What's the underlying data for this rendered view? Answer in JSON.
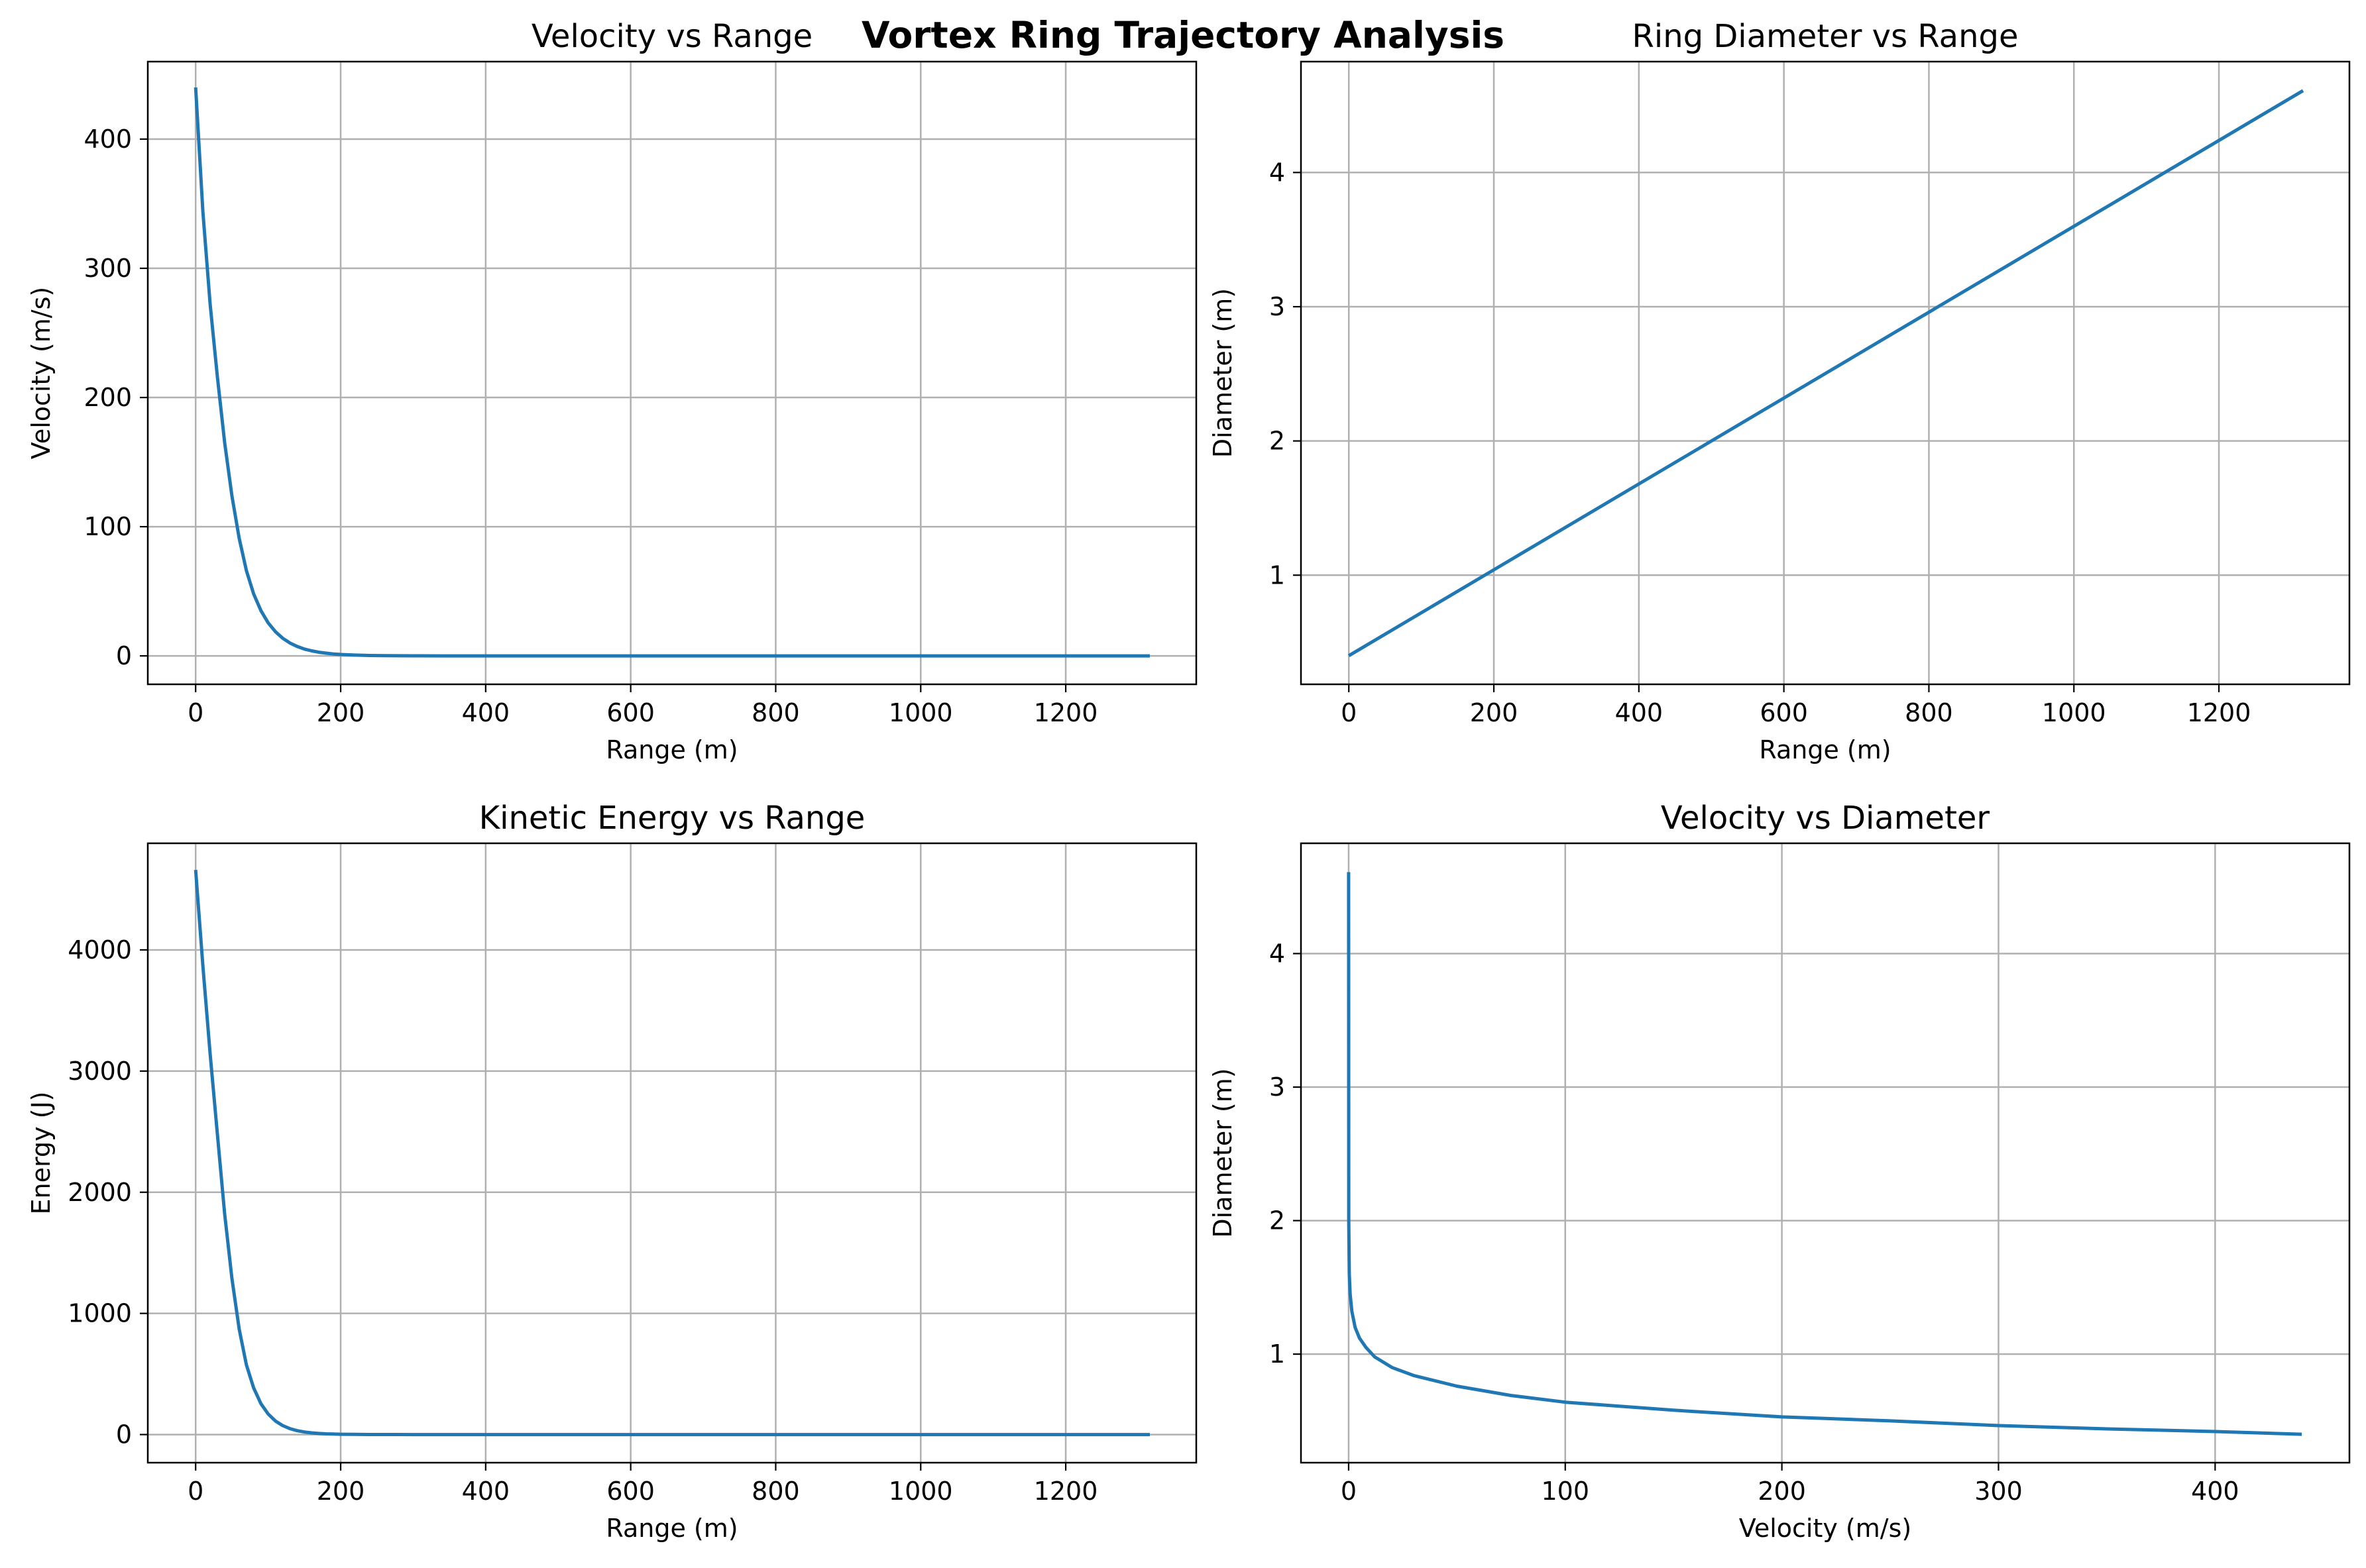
{
  "figure_title": "Vortex Ring Trajectory Analysis",
  "line_color": "#1f77b4",
  "chart_data": [
    {
      "type": "line",
      "title": "Velocity vs Range",
      "xlabel": "Range (m)",
      "ylabel": "Velocity (m/s)",
      "xlim": [
        -66,
        1380
      ],
      "ylim": [
        -22,
        460
      ],
      "xticks": [
        0,
        200,
        400,
        600,
        800,
        1000,
        1200
      ],
      "yticks": [
        0,
        100,
        200,
        300,
        400
      ],
      "xtick_labels": [
        "0",
        "200",
        "400",
        "600",
        "800",
        "1000",
        "1200"
      ],
      "ytick_labels": [
        "0",
        "100",
        "200",
        "300",
        "400"
      ],
      "grid": true,
      "series": [
        {
          "x": [
            0,
            10,
            20,
            30,
            40,
            50,
            60,
            70,
            80,
            90,
            100,
            110,
            120,
            130,
            140,
            150,
            160,
            170,
            180,
            190,
            200,
            220,
            240,
            260,
            280,
            300,
            340,
            380,
            420,
            500,
            600,
            700,
            800,
            900,
            1000,
            1100,
            1200,
            1316
          ],
          "y": [
            440,
            344,
            272,
            216,
            165,
            124,
            91,
            66,
            48,
            35,
            25.6,
            18.7,
            13.7,
            10.0,
            7.3,
            5.3,
            3.9,
            2.8,
            2.1,
            1.5,
            1.1,
            0.6,
            0.3,
            0.17,
            0.09,
            0.05,
            0.02,
            0.01,
            0,
            0,
            0,
            0,
            0,
            0,
            0,
            0,
            0,
            0
          ]
        }
      ]
    },
    {
      "type": "line",
      "title": "Ring Diameter vs Range",
      "xlabel": "Range (m)",
      "ylabel": "Diameter (m)",
      "xlim": [
        -66,
        1380
      ],
      "ylim": [
        0.187,
        4.826
      ],
      "xticks": [
        0,
        200,
        400,
        600,
        800,
        1000,
        1200
      ],
      "yticks": [
        1,
        2,
        3,
        4
      ],
      "xtick_labels": [
        "0",
        "200",
        "400",
        "600",
        "800",
        "1000",
        "1200"
      ],
      "ytick_labels": [
        "1",
        "2",
        "3",
        "4"
      ],
      "grid": true,
      "series": [
        {
          "x": [
            0,
            1316
          ],
          "y": [
            0.4,
            4.61
          ]
        }
      ]
    },
    {
      "type": "line",
      "title": "Kinetic Energy vs Range",
      "xlabel": "Range (m)",
      "ylabel": "Energy (J)",
      "xlim": [
        -66,
        1380
      ],
      "ylim": [
        -232,
        4880
      ],
      "xticks": [
        0,
        200,
        400,
        600,
        800,
        1000,
        1200
      ],
      "yticks": [
        0,
        1000,
        2000,
        3000,
        4000
      ],
      "xtick_labels": [
        "0",
        "200",
        "400",
        "600",
        "800",
        "1000",
        "1200"
      ],
      "ytick_labels": [
        "0",
        "1000",
        "2000",
        "3000",
        "4000"
      ],
      "grid": true,
      "series": [
        {
          "x": [
            0,
            10,
            20,
            30,
            40,
            50,
            60,
            70,
            80,
            90,
            100,
            110,
            120,
            130,
            140,
            150,
            160,
            170,
            180,
            190,
            200,
            220,
            240,
            260,
            280,
            300,
            340,
            400,
            500,
            600,
            700,
            800,
            900,
            1000,
            1100,
            1200,
            1316
          ],
          "y": [
            4660,
            3870,
            3140,
            2480,
            1820,
            1290,
            870,
            575,
            385,
            255,
            170,
            112,
            74,
            49,
            32,
            21,
            14,
            9,
            6,
            4,
            2.6,
            1.2,
            0.5,
            0.2,
            0.1,
            0,
            0,
            0,
            0,
            0,
            0,
            0,
            0,
            0,
            0,
            0,
            0
          ]
        }
      ]
    },
    {
      "type": "line",
      "title": "Velocity vs Diameter",
      "xlabel": "Velocity (m/s)",
      "ylabel": "Diameter (m)",
      "xlim": [
        -22,
        462
      ],
      "ylim": [
        0.187,
        4.826
      ],
      "xticks": [
        0,
        100,
        200,
        300,
        400
      ],
      "yticks": [
        1,
        2,
        3,
        4
      ],
      "xtick_labels": [
        "0",
        "100",
        "200",
        "300",
        "400"
      ],
      "ytick_labels": [
        "1",
        "2",
        "3",
        "4"
      ],
      "grid": true,
      "series": [
        {
          "x": [
            0,
            0.05,
            0.3,
            0.7,
            1.5,
            3,
            5,
            8,
            12,
            20,
            30,
            50,
            75,
            100,
            150,
            200,
            250,
            300,
            350,
            400,
            440
          ],
          "y": [
            4.61,
            2.0,
            1.6,
            1.45,
            1.32,
            1.2,
            1.12,
            1.05,
            0.98,
            0.9,
            0.84,
            0.76,
            0.69,
            0.64,
            0.58,
            0.53,
            0.5,
            0.465,
            0.44,
            0.42,
            0.4
          ]
        }
      ]
    }
  ]
}
